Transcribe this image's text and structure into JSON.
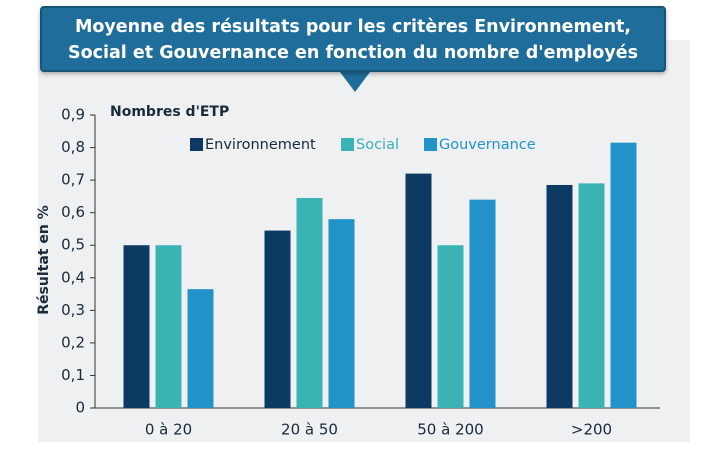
{
  "chart_data": {
    "type": "bar",
    "title": "Moyenne des résultats pour les critères Environnement, Social et Gouvernance en fonction du nombre d'employés",
    "legend_title": "Nombres d'ETP",
    "y_label": "Résultat en %",
    "categories": [
      "0 à 20",
      "20 à 50",
      "50 à 200",
      ">200"
    ],
    "series": [
      {
        "name": "Environnement",
        "color": "#0d3a63",
        "values": [
          0.5,
          0.545,
          0.72,
          0.685
        ]
      },
      {
        "name": "Social",
        "color": "#3ab3b5",
        "values": [
          0.5,
          0.645,
          0.5,
          0.69
        ]
      },
      {
        "name": "Gouvernance",
        "color": "#2193c9",
        "values": [
          0.365,
          0.58,
          0.64,
          0.815
        ]
      }
    ],
    "ylim": [
      0,
      0.9
    ],
    "yticks": [
      0,
      {
        "value": 0.1,
        "label": "0,1"
      },
      {
        "value": 0.2,
        "label": "0,2"
      },
      {
        "value": 0.3,
        "label": "0,3"
      },
      {
        "value": 0.4,
        "label": "0,4"
      },
      {
        "value": 0.5,
        "label": "0,5"
      },
      {
        "value": 0.6,
        "label": "0,6"
      },
      {
        "value": 0.7,
        "label": "0,7"
      },
      {
        "value": 0.8,
        "label": "0,8"
      },
      {
        "value": 0.9,
        "label": "0,9"
      }
    ],
    "legend": "top"
  }
}
